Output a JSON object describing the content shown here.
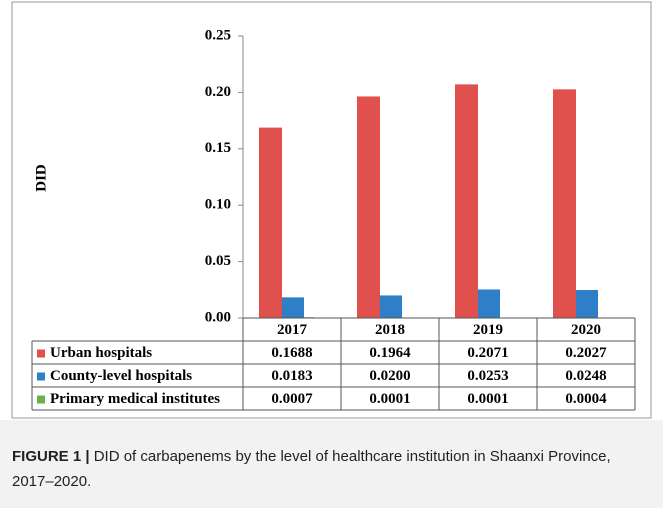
{
  "chart_data": {
    "type": "bar",
    "y_label": "DID",
    "categories": [
      "2017",
      "2018",
      "2019",
      "2020"
    ],
    "series": [
      {
        "name": "Urban hospitals",
        "color": "#e0504d",
        "values": [
          0.1688,
          0.1964,
          0.2071,
          0.2027
        ],
        "value_labels": [
          "0.1688",
          "0.1964",
          "0.2071",
          "0.2027"
        ]
      },
      {
        "name": "County-level hospitals",
        "color": "#2e7fc8",
        "values": [
          0.0183,
          0.02,
          0.0253,
          0.0248
        ],
        "value_labels": [
          "0.0183",
          "0.0200",
          "0.0253",
          "0.0248"
        ]
      },
      {
        "name": "Primary medical institutes",
        "color": "#6ab04c",
        "values": [
          0.0007,
          0.0001,
          0.0001,
          0.0004
        ],
        "value_labels": [
          "0.0007",
          "0.0001",
          "0.0001",
          "0.0004"
        ]
      }
    ],
    "ylim": [
      0,
      0.25
    ],
    "yticks": [
      {
        "value": 0,
        "label": "0.00"
      },
      {
        "value": 0.05,
        "label": "0.05"
      },
      {
        "value": 0.1,
        "label": "0.10"
      },
      {
        "value": 0.15,
        "label": "0.15"
      },
      {
        "value": 0.2,
        "label": "0.20"
      },
      {
        "value": 0.25,
        "label": "0.25"
      }
    ]
  },
  "caption": {
    "label": "FIGURE 1 |",
    "text": "DID of carbapenems by the level of healthcare institution in Shaanxi Province, 2017–2020."
  }
}
